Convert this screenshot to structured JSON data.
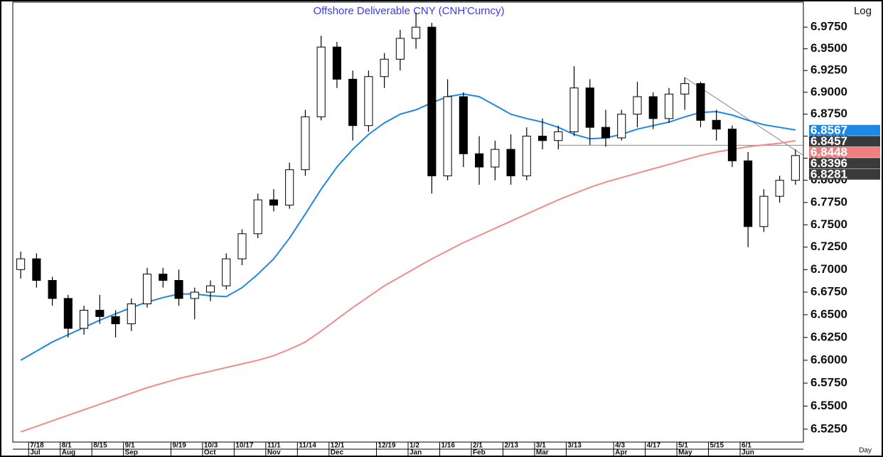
{
  "chart_data": {
    "type": "candlestick",
    "title": "Offshore Deliverable CNY (CNH'Curncy)",
    "y_scale_label": "Log",
    "x_label": "Day",
    "log_scale": true,
    "ylim": [
      6.511,
      7.004
    ],
    "yticks": [
      {
        "value": 6.525,
        "label": "6.5250"
      },
      {
        "value": 6.55,
        "label": "6.5500"
      },
      {
        "value": 6.575,
        "label": "6.5750"
      },
      {
        "value": 6.6,
        "label": "6.6000"
      },
      {
        "value": 6.625,
        "label": "6.6250"
      },
      {
        "value": 6.65,
        "label": "6.6500"
      },
      {
        "value": 6.675,
        "label": "6.6750"
      },
      {
        "value": 6.7,
        "label": "6.7000"
      },
      {
        "value": 6.725,
        "label": "6.7250"
      },
      {
        "value": 6.75,
        "label": "6.7500"
      },
      {
        "value": 6.775,
        "label": "6.7750"
      },
      {
        "value": 6.8,
        "label": "6.8000"
      },
      {
        "value": 6.825,
        "label": "6.8250"
      },
      {
        "value": 6.85,
        "label": "6.8500"
      },
      {
        "value": 6.875,
        "label": "6.8750"
      },
      {
        "value": 6.9,
        "label": "6.9000"
      },
      {
        "value": 6.925,
        "label": "6.9250"
      },
      {
        "value": 6.95,
        "label": "6.9500"
      },
      {
        "value": 6.975,
        "label": "6.9750"
      }
    ],
    "categories": [
      null,
      "7/18",
      null,
      "8/1",
      null,
      "8/15",
      null,
      "9/1",
      null,
      null,
      "9/19",
      null,
      "10/3",
      null,
      "10/17",
      null,
      "11/1",
      null,
      "11/14",
      null,
      "12/1",
      null,
      null,
      "12/19",
      null,
      "1/2",
      null,
      "1/16",
      null,
      "2/1",
      null,
      "2/13",
      null,
      "3/1",
      null,
      "3/13",
      null,
      null,
      "4/3",
      null,
      "4/17",
      null,
      "5/1",
      null,
      "5/15",
      null,
      "6/1",
      null,
      null,
      null
    ],
    "months": [
      null,
      "Jul",
      null,
      "Aug",
      null,
      null,
      null,
      "Sep",
      null,
      null,
      null,
      null,
      "Oct",
      null,
      null,
      null,
      "Nov",
      null,
      null,
      null,
      "Dec",
      null,
      null,
      null,
      null,
      "Jan",
      null,
      null,
      null,
      "Feb",
      null,
      null,
      null,
      "Mar",
      null,
      null,
      null,
      null,
      "Apr",
      null,
      null,
      null,
      "May",
      null,
      null,
      null,
      "Jun",
      null,
      null,
      null
    ],
    "open": [
      6.7,
      6.712,
      6.688,
      6.668,
      6.635,
      6.655,
      6.648,
      6.64,
      6.662,
      6.695,
      6.688,
      6.668,
      6.675,
      6.682,
      6.712,
      6.74,
      6.778,
      6.772,
      6.812,
      6.872,
      6.952,
      6.915,
      6.862,
      6.918,
      6.938,
      6.962,
      6.975,
      6.805,
      6.895,
      6.83,
      6.815,
      6.835,
      6.805,
      6.85,
      6.845,
      6.855,
      6.905,
      6.86,
      6.848,
      6.875,
      6.895,
      6.87,
      6.898,
      6.91,
      6.868,
      6.858,
      6.822,
      6.748,
      6.782,
      6.8
    ],
    "high": [
      6.72,
      6.718,
      6.692,
      6.672,
      6.66,
      6.672,
      6.655,
      6.668,
      6.702,
      6.702,
      6.7,
      6.68,
      6.688,
      6.718,
      6.745,
      6.785,
      6.79,
      6.82,
      6.88,
      6.965,
      6.958,
      6.925,
      6.925,
      6.945,
      6.972,
      6.992,
      6.98,
      6.915,
      6.9,
      6.85,
      6.845,
      6.852,
      6.86,
      6.87,
      6.862,
      6.93,
      6.915,
      6.88,
      6.88,
      6.912,
      6.9,
      6.905,
      6.917,
      6.912,
      6.88,
      6.862,
      6.832,
      6.79,
      6.805,
      6.835
    ],
    "low": [
      6.69,
      6.68,
      6.66,
      6.625,
      6.628,
      6.64,
      6.625,
      6.632,
      6.658,
      6.68,
      6.66,
      6.645,
      6.665,
      6.678,
      6.705,
      6.735,
      6.765,
      6.768,
      6.805,
      6.868,
      6.905,
      6.845,
      6.855,
      6.905,
      6.925,
      6.95,
      6.785,
      6.8,
      6.815,
      6.795,
      6.8,
      6.795,
      6.8,
      6.835,
      6.835,
      6.85,
      6.84,
      6.838,
      6.845,
      6.86,
      6.858,
      6.865,
      6.88,
      6.86,
      6.845,
      6.815,
      6.725,
      6.742,
      6.775,
      6.795
    ],
    "close": [
      6.712,
      6.688,
      6.668,
      6.635,
      6.655,
      6.648,
      6.64,
      6.662,
      6.695,
      6.688,
      6.668,
      6.675,
      6.682,
      6.712,
      6.74,
      6.778,
      6.772,
      6.812,
      6.872,
      6.952,
      6.915,
      6.862,
      6.918,
      6.938,
      6.962,
      6.975,
      6.805,
      6.895,
      6.83,
      6.815,
      6.835,
      6.805,
      6.85,
      6.845,
      6.855,
      6.905,
      6.86,
      6.848,
      6.875,
      6.895,
      6.87,
      6.898,
      6.91,
      6.868,
      6.858,
      6.822,
      6.748,
      6.782,
      6.8,
      6.828
    ],
    "up_color": "#ffffff",
    "down_color": "#000000",
    "lines": [
      {
        "color": "#1e88e5",
        "values": [
          6.6,
          6.61,
          6.62,
          6.628,
          6.636,
          6.644,
          6.651,
          6.658,
          6.664,
          6.669,
          6.673,
          6.673,
          6.671,
          6.67,
          6.68,
          6.695,
          6.712,
          6.735,
          6.762,
          6.79,
          6.815,
          6.835,
          6.852,
          6.865,
          6.875,
          6.88,
          6.888,
          6.895,
          6.898,
          6.895,
          6.885,
          6.875,
          6.87,
          6.866,
          6.86,
          6.852,
          6.847,
          6.848,
          6.852,
          6.858,
          6.862,
          6.866,
          6.872,
          6.877,
          6.878,
          6.874,
          6.868,
          6.863,
          6.86,
          6.857
        ]
      },
      {
        "color": "#f08c8c",
        "values": [
          6.522,
          6.528,
          6.534,
          6.54,
          6.546,
          6.552,
          6.558,
          6.564,
          6.57,
          6.575,
          6.58,
          6.584,
          6.588,
          6.592,
          6.596,
          6.6,
          6.605,
          6.612,
          6.62,
          6.632,
          6.645,
          6.658,
          6.67,
          6.682,
          6.692,
          6.702,
          6.712,
          6.721,
          6.73,
          6.738,
          6.746,
          6.754,
          6.762,
          6.77,
          6.778,
          6.785,
          6.792,
          6.798,
          6.803,
          6.808,
          6.813,
          6.818,
          6.823,
          6.828,
          6.832,
          6.835,
          6.838,
          6.84,
          6.842,
          6.8448
        ]
      }
    ],
    "markers": [
      {
        "value": 6.8567,
        "color": "#1e88e5"
      },
      {
        "value": 6.8457,
        "color": "#3a3a3a"
      },
      {
        "value": 6.8448,
        "color": "#f08080"
      },
      {
        "value": 6.8396,
        "color": "#3a3a3a"
      },
      {
        "value": 6.8281,
        "color": "#3a3a3a"
      }
    ]
  }
}
